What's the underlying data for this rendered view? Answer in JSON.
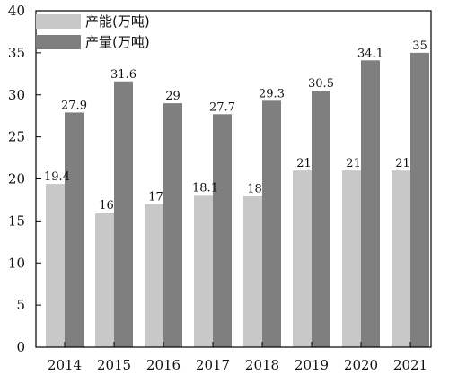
{
  "chart_data": {
    "type": "bar",
    "categories": [
      "2014",
      "2015",
      "2016",
      "2017",
      "2018",
      "2019",
      "2020",
      "2021"
    ],
    "series": [
      {
        "name": "产能(万吨)",
        "values": [
          19.4,
          16,
          17,
          18.1,
          18,
          21,
          21,
          21
        ],
        "color": "#c8c8c8",
        "labels": [
          "19.4",
          "16",
          "17",
          "18.1",
          "18",
          "21",
          "21",
          "21"
        ]
      },
      {
        "name": "产量(万吨)",
        "values": [
          27.9,
          31.6,
          29,
          27.7,
          29.3,
          30.5,
          34.1,
          35
        ],
        "color": "#7f7f7f",
        "labels": [
          "27.9",
          "31.6",
          "29",
          "27.7",
          "29.3",
          "30.5",
          "34.1",
          "35"
        ]
      }
    ],
    "ylim": [
      0,
      40
    ],
    "yticks": [
      "0",
      "5",
      "10",
      "15",
      "20",
      "25",
      "30",
      "35",
      "40"
    ],
    "legend_position": "top-left",
    "grid": false
  }
}
